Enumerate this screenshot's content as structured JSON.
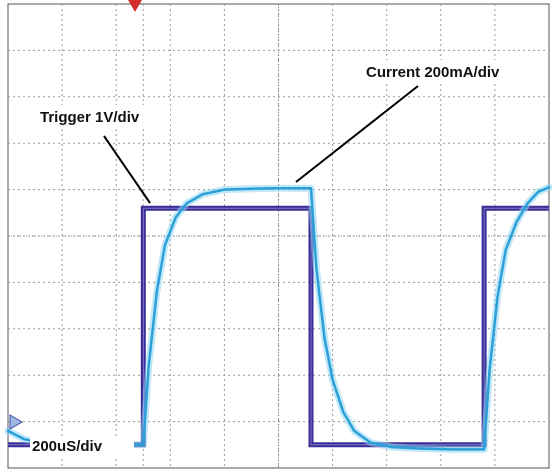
{
  "chart_data": {
    "type": "line",
    "title": "",
    "annotations": {
      "current": "Current 200mA/div",
      "trigger": "Trigger 1V/div",
      "timebase": "200uS/div"
    },
    "grid": true,
    "divisions": {
      "x": 10,
      "y": 10
    },
    "x_unit": "div",
    "y_unit": "div",
    "xlim": [
      0,
      10
    ],
    "ylim": [
      0,
      10
    ],
    "trigger_marker_x": 2.5,
    "series": [
      {
        "name": "Trigger",
        "color": "#3a2f9a",
        "x": [
          0,
          2.5,
          2.5,
          5.6,
          5.6,
          8.8,
          8.8,
          10
        ],
        "y": [
          0.5,
          0.5,
          5.6,
          5.6,
          0.5,
          0.5,
          5.6,
          5.6
        ]
      },
      {
        "name": "Current",
        "color": "#2aa0d8",
        "x": [
          0,
          0.3,
          0.6,
          1.0,
          1.6,
          2.5,
          2.6,
          2.75,
          2.9,
          3.1,
          3.3,
          3.6,
          4.0,
          4.5,
          5.0,
          5.6,
          5.7,
          5.85,
          6.0,
          6.2,
          6.4,
          6.7,
          7.1,
          7.6,
          8.2,
          8.8,
          8.9,
          9.05,
          9.2,
          9.4,
          9.6,
          9.8,
          10
        ],
        "y": [
          0.8,
          0.62,
          0.55,
          0.52,
          0.5,
          0.5,
          2.2,
          3.8,
          4.8,
          5.4,
          5.7,
          5.9,
          6.0,
          6.02,
          6.03,
          6.03,
          4.3,
          2.8,
          1.9,
          1.2,
          0.8,
          0.55,
          0.45,
          0.42,
          0.4,
          0.4,
          2.1,
          3.7,
          4.7,
          5.3,
          5.7,
          5.95,
          6.05
        ]
      }
    ]
  }
}
